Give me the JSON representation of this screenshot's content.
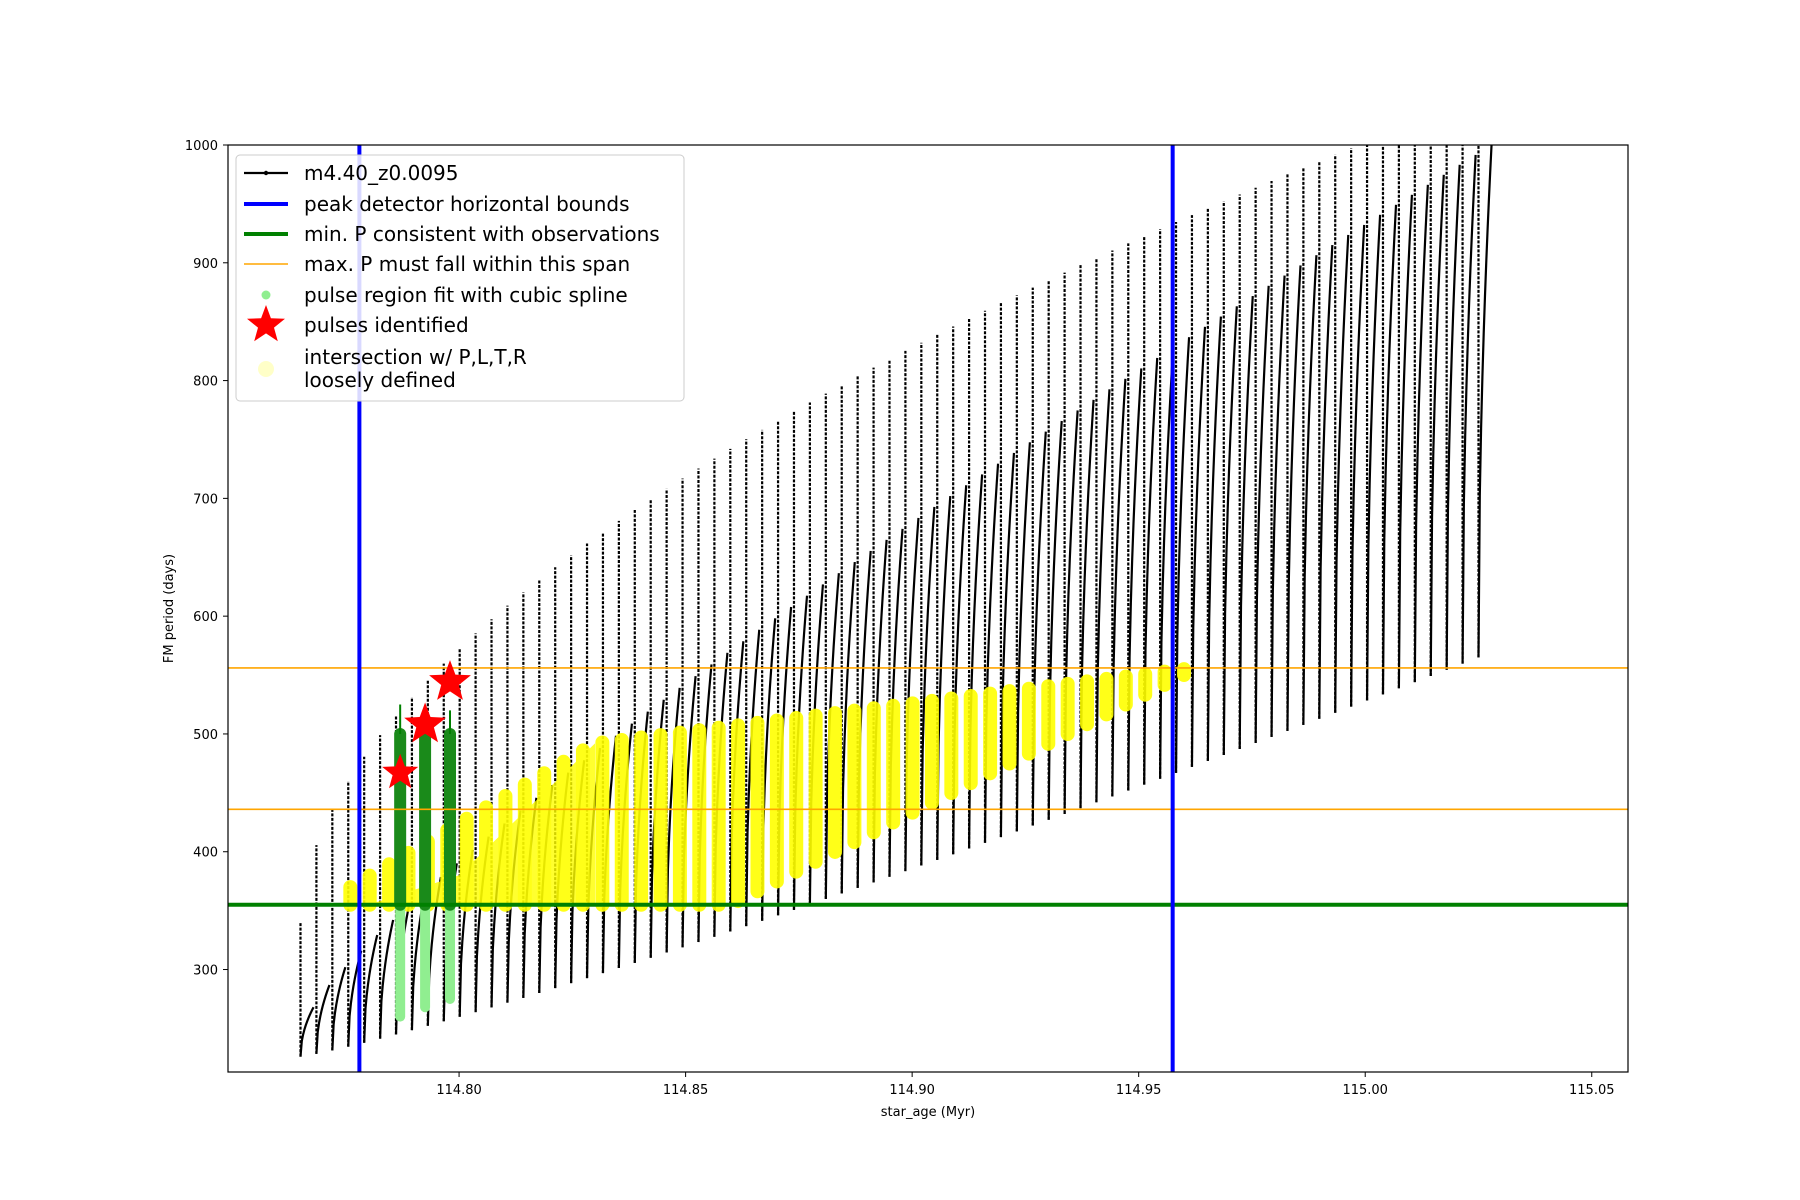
{
  "chart_data": {
    "type": "scatter",
    "title": "",
    "xlabel": "star_age (Myr)",
    "ylabel": "FM period (days)",
    "xlim": [
      114.749,
      115.058
    ],
    "ylim": [
      213,
      1000
    ],
    "x_ticks": [
      114.8,
      114.85,
      114.9,
      114.95,
      115.0,
      115.05
    ],
    "x_tick_labels": [
      "114.80",
      "114.85",
      "114.90",
      "114.95",
      "115.00",
      "115.05"
    ],
    "y_ticks": [
      300,
      400,
      500,
      600,
      700,
      800,
      900,
      1000
    ],
    "y_tick_labels": [
      "300",
      "400",
      "500",
      "600",
      "700",
      "800",
      "900",
      "1000"
    ],
    "grid": false,
    "legend_position": "upper-left",
    "legend": [
      {
        "label": "m4.40_z0.0095",
        "kind": "line-marker",
        "color": "#000000"
      },
      {
        "label": "peak detector horizontal bounds",
        "kind": "line",
        "color": "#0000ff"
      },
      {
        "label": "min. P consistent with observations",
        "kind": "line",
        "color": "#008000"
      },
      {
        "label": "max. P must fall within this span",
        "kind": "thin-line",
        "color": "#ffa500"
      },
      {
        "label": "pulse region fit with cubic spline",
        "kind": "dot",
        "color": "#90ee90"
      },
      {
        "label": "pulses identified",
        "kind": "star",
        "color": "#ff0000"
      },
      {
        "label": "intersection w/ P,L,T,R\nloosely defined",
        "kind": "big-dot",
        "color": "#ffffc8"
      }
    ],
    "vertical_lines": [
      {
        "x": 114.778,
        "color": "#0000ff",
        "series": "peak detector horizontal bounds"
      },
      {
        "x": 114.9575,
        "color": "#0000ff",
        "series": "peak detector horizontal bounds"
      }
    ],
    "horizontal_lines": [
      {
        "y": 355,
        "color": "#008000",
        "series": "min. P consistent with observations"
      },
      {
        "y": 436,
        "color": "#ffa500",
        "series": "max. P must fall within this span"
      },
      {
        "y": 556,
        "color": "#ffa500",
        "series": "max. P must fall within this span"
      }
    ],
    "pulses": [
      {
        "x": 114.787,
        "y": 467
      },
      {
        "x": 114.7925,
        "y": 508
      },
      {
        "x": 114.798,
        "y": 544
      }
    ],
    "main_series": {
      "name": "m4.40_z0.0095",
      "color": "#000000",
      "x_start": 114.765,
      "x_end": 115.025,
      "base_start": 226,
      "base_end": 565,
      "peak_start": 268,
      "peak_end": 1000,
      "spike_top_start": 300,
      "spike_top_end": 1000,
      "n_cycles": 75
    },
    "green_pulse_columns": [
      {
        "x": 114.787,
        "y_low": 260,
        "y_high": 500,
        "y_top": 525
      },
      {
        "x": 114.7925,
        "y_low": 268,
        "y_high": 500,
        "y_top": 505
      },
      {
        "x": 114.798,
        "y_low": 275,
        "y_high": 500,
        "y_top": 520
      }
    ],
    "yellow_region": {
      "x_start": 114.776,
      "x_end": 114.96,
      "y_floor": 355,
      "y_top_start": 370,
      "y_top_peak": 492,
      "x_top_peak": 114.83,
      "y_top_end": 555,
      "column_bottom_start": 355,
      "column_bottom_end": 550
    }
  }
}
